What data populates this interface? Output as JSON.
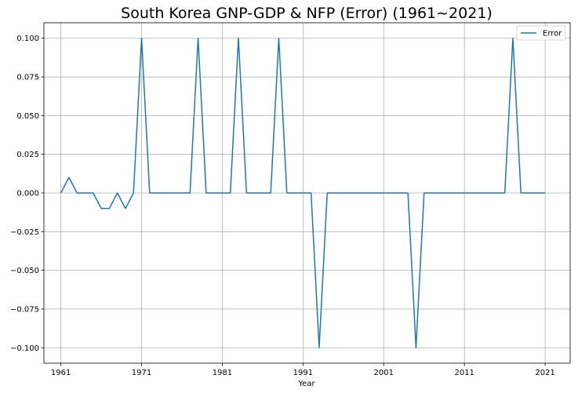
{
  "chart_data": {
    "type": "line",
    "title": "South Korea GNP-GDP & NFP (Error) (1961~2021)",
    "xlabel": "Year",
    "ylabel": "",
    "xlim": [
      1958.9,
      2024.1
    ],
    "ylim": [
      -0.11,
      0.11
    ],
    "x_ticks": [
      1961,
      1971,
      1981,
      1991,
      2001,
      2011,
      2021
    ],
    "y_ticks": [
      0.1,
      0.075,
      0.05,
      0.025,
      0.0,
      -0.025,
      -0.05,
      -0.075,
      -0.1
    ],
    "y_tick_labels": [
      "0.100",
      "0.075",
      "0.050",
      "0.025",
      "0.000",
      "−0.025",
      "−0.050",
      "−0.075",
      "−0.100"
    ],
    "grid": true,
    "legend_position": "top-right",
    "line_color": "#1f77b4",
    "series": [
      {
        "name": "Error",
        "x": [
          1961,
          1962,
          1963,
          1964,
          1965,
          1966,
          1967,
          1968,
          1969,
          1970,
          1971,
          1972,
          1973,
          1974,
          1975,
          1976,
          1977,
          1978,
          1979,
          1980,
          1981,
          1982,
          1983,
          1984,
          1985,
          1986,
          1987,
          1988,
          1989,
          1990,
          1991,
          1992,
          1993,
          1994,
          1995,
          1996,
          1997,
          1998,
          1999,
          2000,
          2001,
          2002,
          2003,
          2004,
          2005,
          2006,
          2007,
          2008,
          2009,
          2010,
          2011,
          2012,
          2013,
          2014,
          2015,
          2016,
          2017,
          2018,
          2019,
          2020,
          2021
        ],
        "values": [
          0.0,
          0.01,
          0.0,
          0.0,
          0.0,
          -0.01,
          -0.01,
          0.0,
          -0.01,
          0.0,
          0.1,
          0.0,
          0.0,
          0.0,
          0.0,
          0.0,
          0.0,
          0.1,
          0.0,
          0.0,
          0.0,
          0.0,
          0.1,
          0.0,
          0.0,
          0.0,
          0.0,
          0.1,
          0.0,
          0.0,
          0.0,
          0.0,
          -0.1,
          0.0,
          0.0,
          0.0,
          0.0,
          0.0,
          0.0,
          0.0,
          0.0,
          0.0,
          0.0,
          0.0,
          -0.1,
          0.0,
          0.0,
          0.0,
          0.0,
          0.0,
          0.0,
          0.0,
          0.0,
          0.0,
          0.0,
          0.0,
          0.1,
          0.0,
          0.0,
          0.0,
          0.0
        ]
      }
    ]
  }
}
